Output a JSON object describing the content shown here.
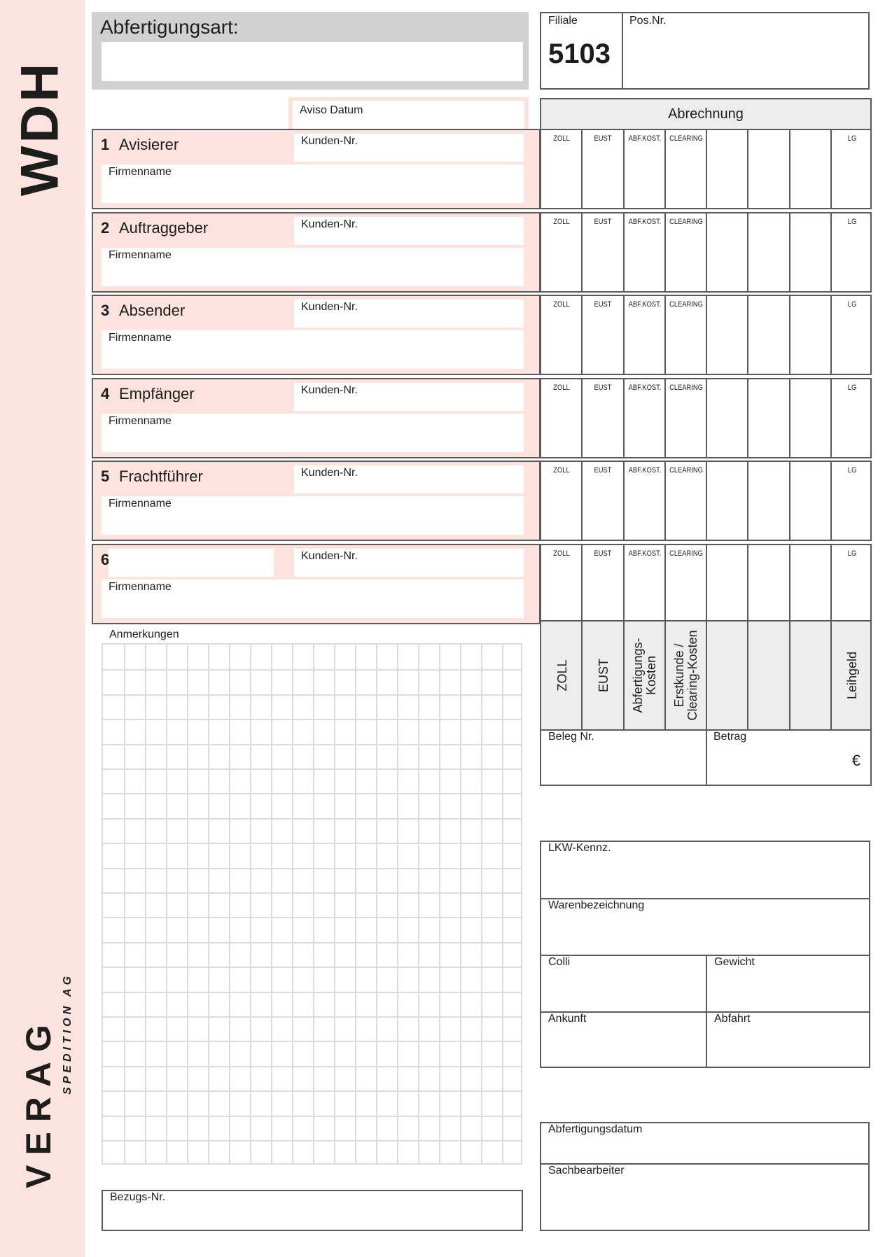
{
  "sidebar": {
    "code": "WDH",
    "logo": "VERAG",
    "logo_sub": "SPEDITION AG",
    "band_color": "#fbe3df"
  },
  "header": {
    "abfertigungsart_label": "Abfertigungsart:",
    "filiale_label": "Filiale",
    "filiale_value": "5103",
    "posnr_label": "Pos.Nr."
  },
  "aviso_label": "Aviso Datum",
  "abrechnung": {
    "title": "Abrechnung",
    "columns": [
      "ZOLL",
      "EUST",
      "ABF.KOST.",
      "CLEARING",
      "",
      "",
      "",
      "LG"
    ],
    "rotated_headers": [
      "ZOLL",
      "EUST",
      "Abfertigungs-\nKosten",
      "Erstkunde /\nClearing-Kosten",
      "",
      "",
      "",
      "Leihgeld"
    ],
    "beleg_label": "Beleg Nr.",
    "betrag_label": "Betrag",
    "currency": "€"
  },
  "sections": [
    {
      "number": "1",
      "title": "Avisierer",
      "kunden_label": "Kunden-Nr.",
      "firmen_label": "Firmenname"
    },
    {
      "number": "2",
      "title": "Auftraggeber",
      "kunden_label": "Kunden-Nr.",
      "firmen_label": "Firmenname"
    },
    {
      "number": "3",
      "title": "Absender",
      "kunden_label": "Kunden-Nr.",
      "firmen_label": "Firmenname"
    },
    {
      "number": "4",
      "title": "Empfänger",
      "kunden_label": "Kunden-Nr.",
      "firmen_label": "Firmenname"
    },
    {
      "number": "5",
      "title": "Frachtführer",
      "kunden_label": "Kunden-Nr.",
      "firmen_label": "Firmenname"
    },
    {
      "number": "6",
      "title": "",
      "kunden_label": "Kunden-Nr.",
      "firmen_label": "Firmenname"
    }
  ],
  "anmerkungen_label": "Anmerkungen",
  "bezugs_label": "Bezugs-Nr.",
  "transport": {
    "lkw": "LKW-Kennz.",
    "ware": "Warenbezeichnung",
    "colli": "Colli",
    "gewicht": "Gewicht",
    "ankunft": "Ankunft",
    "abfahrt": "Abfahrt"
  },
  "abschluss": {
    "datum": "Abfertigungsdatum",
    "sachbearbeiter": "Sachbearbeiter"
  }
}
